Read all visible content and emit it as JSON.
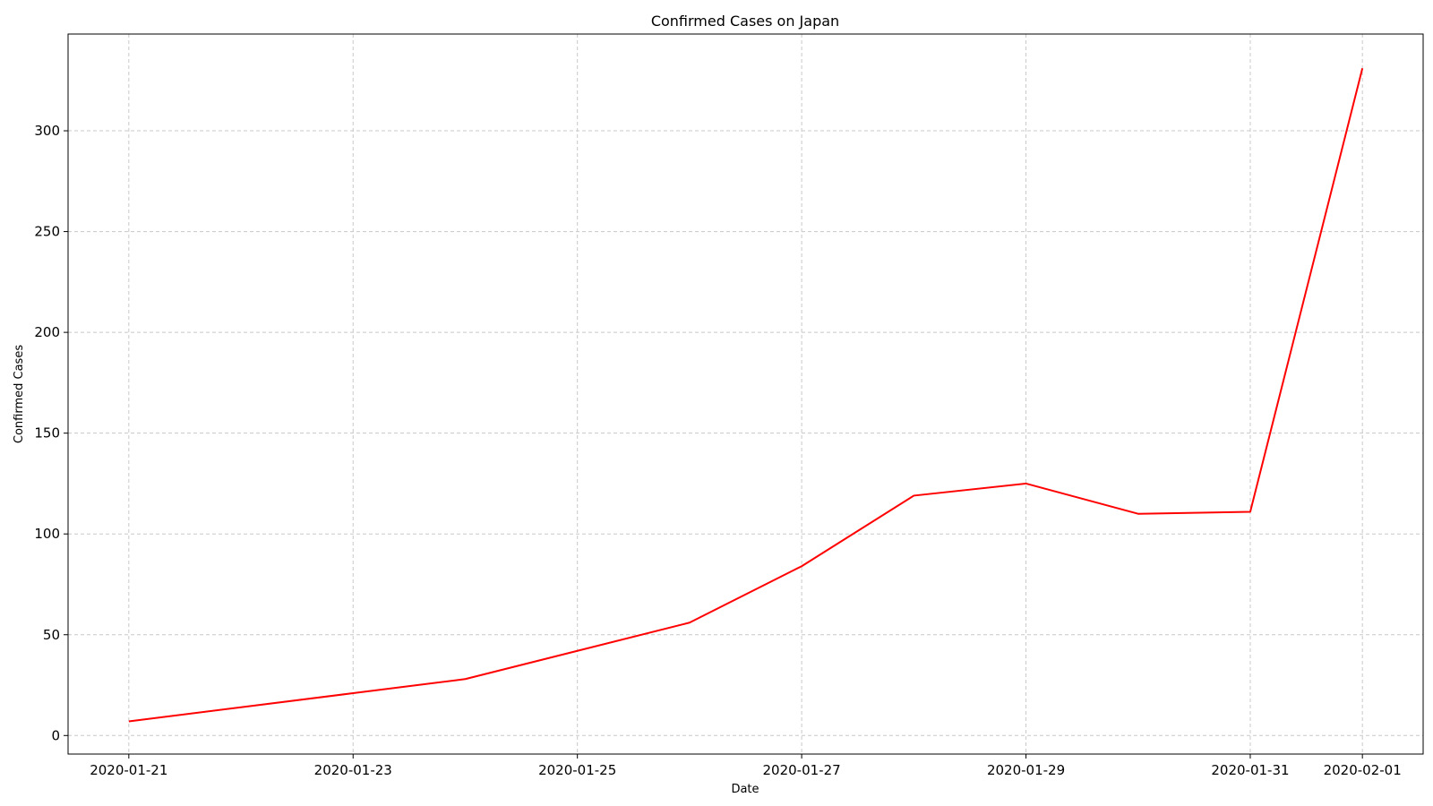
{
  "chart_data": {
    "type": "line",
    "title": "Confirmed Cases on Japan",
    "xlabel": "Date",
    "ylabel": "Confirmed Cases",
    "x": [
      "2020-01-21",
      "2020-01-22",
      "2020-01-23",
      "2020-01-24",
      "2020-01-25",
      "2020-01-26",
      "2020-01-27",
      "2020-01-28",
      "2020-01-29",
      "2020-01-30",
      "2020-01-31",
      "2020-02-01"
    ],
    "series": [
      {
        "values": [
          7,
          14,
          21,
          28,
          42,
          56,
          84,
          119,
          125,
          110,
          111,
          331
        ],
        "color": "#ff0000"
      }
    ],
    "xticks": [
      "2020-01-21",
      "2020-01-23",
      "2020-01-25",
      "2020-01-27",
      "2020-01-29",
      "2020-01-31",
      "2020-02-01"
    ],
    "yticks": [
      0,
      50,
      100,
      150,
      200,
      250,
      300
    ],
    "ytick_labels": [
      "0",
      "50",
      "100",
      "150",
      "200",
      "250",
      "300"
    ],
    "ylim": [
      -9.2,
      348
    ],
    "xlim": [
      "2020-01-20T11:00",
      "2020-02-01T13:00"
    ],
    "grid": true,
    "grid_style": "dashed"
  }
}
